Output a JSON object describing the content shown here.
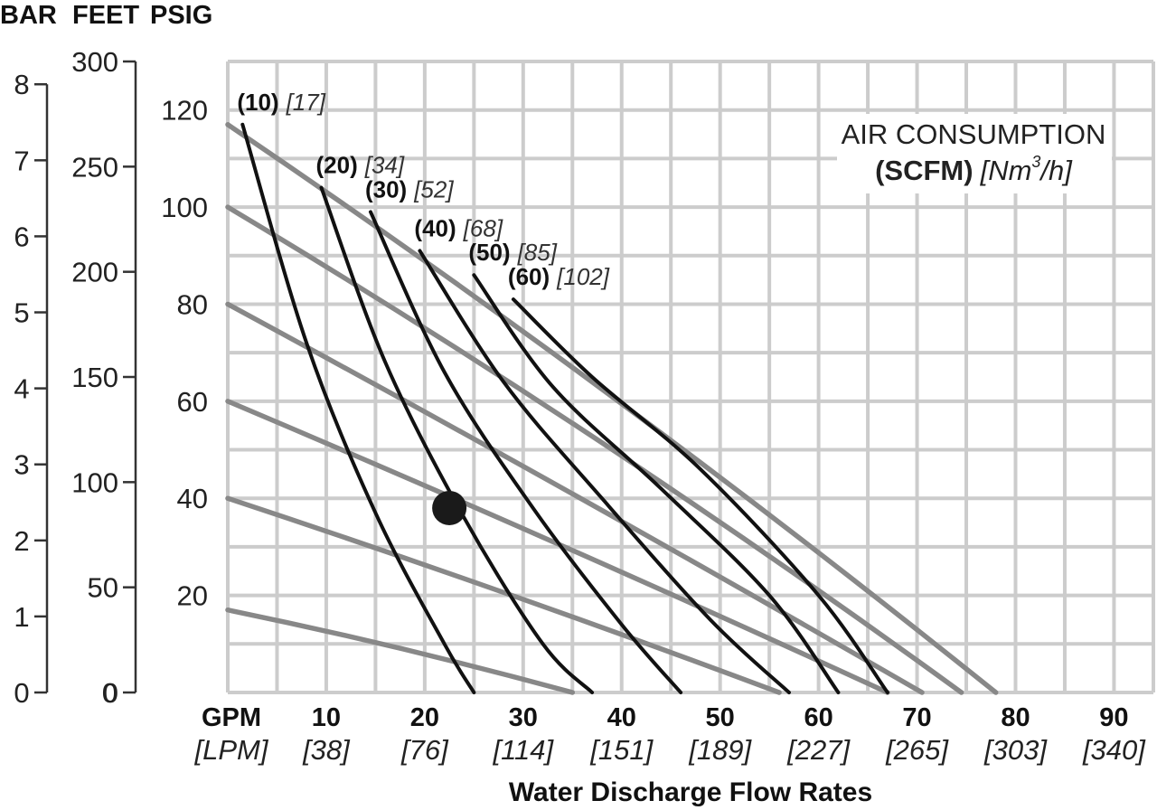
{
  "chart_data": {
    "type": "line",
    "title": "",
    "axis_headers": {
      "bar": "BAR",
      "feet": "FEET",
      "psig": "PSIG"
    },
    "y_axes": {
      "bar": {
        "ticks": [
          "0",
          "1",
          "2",
          "3",
          "4",
          "5",
          "6",
          "7",
          "8"
        ],
        "range": [
          0,
          8.3
        ]
      },
      "feet": {
        "ticks": [
          "0",
          "50",
          "100",
          "150",
          "200",
          "250",
          "300"
        ],
        "range": [
          0,
          300
        ]
      },
      "psig": {
        "ticks": [
          "20",
          "40",
          "60",
          "80",
          "100",
          "120"
        ],
        "range": [
          0,
          130
        ]
      }
    },
    "x_axis": {
      "unit_top": "GPM",
      "unit_bottom": "[LPM]",
      "ticks": [
        {
          "gpm": "10",
          "lpm": "[38]"
        },
        {
          "gpm": "20",
          "lpm": "[76]"
        },
        {
          "gpm": "30",
          "lpm": "[114]"
        },
        {
          "gpm": "40",
          "lpm": "[151]"
        },
        {
          "gpm": "50",
          "lpm": "[189]"
        },
        {
          "gpm": "60",
          "lpm": "[227]"
        },
        {
          "gpm": "70",
          "lpm": "[265]"
        },
        {
          "gpm": "80",
          "lpm": "[303]"
        },
        {
          "gpm": "90",
          "lpm": "[340]"
        }
      ],
      "range": [
        0,
        94
      ],
      "label": "Water Discharge Flow Rates"
    },
    "legend": {
      "line1": "AIR CONSUMPTION",
      "line2_bold": "(SCFM)",
      "line2_italic_pre": "[Nm",
      "line2_sup": "3",
      "line2_italic_post": "/h]"
    },
    "pressure_lines": [
      {
        "psig_at_zero_flow": 117,
        "zero_head_flow_gpm": 78
      },
      {
        "psig_at_zero_flow": 100,
        "zero_head_flow_gpm": 74.5
      },
      {
        "psig_at_zero_flow": 80,
        "zero_head_flow_gpm": 70.5
      },
      {
        "psig_at_zero_flow": 60,
        "zero_head_flow_gpm": 67
      },
      {
        "psig_at_zero_flow": 40,
        "zero_head_flow_gpm": 56
      },
      {
        "psig_at_zero_flow": 17,
        "zero_head_flow_gpm": 35
      }
    ],
    "air_curves": [
      {
        "scfm": "(10)",
        "nm3h": "[17]",
        "points": [
          [
            1.5,
            117
          ],
          [
            8,
            72
          ],
          [
            15,
            37
          ],
          [
            22,
            10
          ],
          [
            25,
            0
          ]
        ]
      },
      {
        "scfm": "(20)",
        "nm3h": "[34]",
        "points": [
          [
            9.5,
            104
          ],
          [
            16,
            68
          ],
          [
            24,
            36
          ],
          [
            32,
            10
          ],
          [
            37,
            0
          ]
        ]
      },
      {
        "scfm": "(30)",
        "nm3h": "[52]",
        "points": [
          [
            14.5,
            99
          ],
          [
            22,
            66
          ],
          [
            31,
            38
          ],
          [
            40,
            14
          ],
          [
            46,
            0
          ]
        ]
      },
      {
        "scfm": "(40)",
        "nm3h": "[68]",
        "points": [
          [
            19.5,
            91
          ],
          [
            28,
            64
          ],
          [
            38,
            40
          ],
          [
            49,
            15
          ],
          [
            57,
            0
          ]
        ]
      },
      {
        "scfm": "(50)",
        "nm3h": "[85]",
        "points": [
          [
            25,
            86
          ],
          [
            33,
            63
          ],
          [
            44,
            42
          ],
          [
            55,
            20
          ],
          [
            62,
            0
          ]
        ]
      },
      {
        "scfm": "(60)",
        "nm3h": "[102]",
        "points": [
          [
            29,
            81
          ],
          [
            37,
            65
          ],
          [
            48,
            46
          ],
          [
            60,
            20
          ],
          [
            67,
            0
          ]
        ]
      }
    ],
    "operating_point": {
      "gpm": 22.5,
      "psig": 38
    },
    "grid": true
  }
}
